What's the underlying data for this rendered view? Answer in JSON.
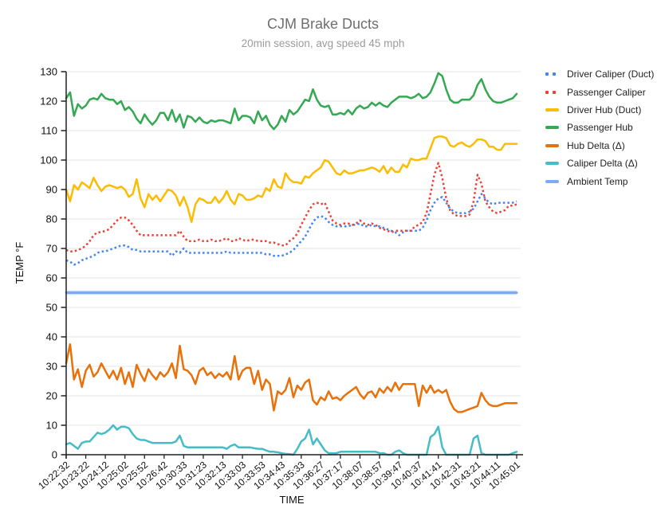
{
  "chart_data": {
    "type": "line",
    "title": "CJM Brake Ducts",
    "subtitle": "20min session, avg speed 45 mph",
    "xlabel": "TIME",
    "ylabel": "TEMP °F",
    "ylim": [
      0,
      130
    ],
    "y_tick_step": 10,
    "grid": true,
    "legend_position": "right",
    "n_points": 116,
    "points_per_tick": 5,
    "x_tick_labels": [
      "10:22:32",
      "10:23:22",
      "10:24:12",
      "10:25:02",
      "10:25:52",
      "10:26:42",
      "10:30:33",
      "10:31:23",
      "10:32:13",
      "10:33:03",
      "10:33:53",
      "10:34:43",
      "10:35:33",
      "10:36:27",
      "10:37:17",
      "10:38:07",
      "10:38:57",
      "10:39:47",
      "10:40:37",
      "10:41:41",
      "10:42:31",
      "10:43:21",
      "10:44:11",
      "10:45:01"
    ],
    "grid_color": "#e6e6e6",
    "axis_color": "#212121",
    "tick_label_color": "#111111",
    "series": [
      {
        "name": "Driver Caliper (Duct)",
        "color": "#4285f4",
        "style": "dotted",
        "values": [
          66,
          65.5,
          64.5,
          65,
          66,
          66.5,
          67,
          67.5,
          68.5,
          69,
          69,
          69.5,
          70,
          70.5,
          71,
          71,
          70.5,
          69.5,
          69.5,
          69,
          69,
          69,
          69,
          69,
          69,
          69,
          69,
          67.5,
          69,
          68.5,
          70,
          68.5,
          68.5,
          68.5,
          68.5,
          68.5,
          68.5,
          68.5,
          68.5,
          68.5,
          68.5,
          69,
          68.5,
          68.5,
          68.5,
          68.5,
          68.5,
          68.5,
          68.5,
          68.5,
          68.5,
          68,
          68,
          67.5,
          67.5,
          67.5,
          68,
          68.5,
          69.5,
          71,
          72.5,
          74,
          76.5,
          79,
          80.5,
          81,
          80.5,
          79,
          78,
          77.5,
          77.5,
          77.5,
          77.5,
          78,
          78,
          78.5,
          77.5,
          77.5,
          78,
          77.5,
          77.5,
          77,
          76.5,
          76,
          75.5,
          74.5,
          75.5,
          76,
          76,
          76,
          76,
          77,
          79.5,
          83,
          85.5,
          87,
          87.5,
          85.5,
          83.5,
          82.5,
          82,
          82,
          82,
          82.5,
          83.5,
          86,
          88.5,
          87,
          85.5,
          85,
          85.5,
          85.5,
          85.5,
          85.5,
          85.5,
          86
        ]
      },
      {
        "name": "Passenger Caliper",
        "color": "#ea4335",
        "style": "dotted",
        "values": [
          69.5,
          69,
          69,
          69.5,
          70,
          71,
          72.5,
          74.5,
          75.5,
          75.5,
          76,
          76.5,
          78,
          79.5,
          80.5,
          80.5,
          79.5,
          78,
          76,
          74.5,
          74.5,
          74.5,
          74.5,
          74.5,
          74.5,
          74.5,
          74.5,
          74.5,
          74.5,
          76,
          74,
          72.5,
          72.5,
          72.5,
          73,
          72.5,
          72.5,
          73,
          72.5,
          72.5,
          73,
          73.5,
          72.5,
          72.5,
          73.5,
          73,
          72.5,
          73,
          73,
          72.5,
          72.5,
          72.5,
          72,
          72,
          71.5,
          71,
          71,
          72.5,
          73.5,
          75,
          78,
          80.5,
          83,
          85,
          85.5,
          85,
          85.5,
          82.5,
          79.5,
          78.5,
          78,
          78.5,
          78.5,
          78,
          78.5,
          79.5,
          78.5,
          78,
          78.5,
          78,
          77,
          76.5,
          76,
          75.5,
          76,
          76,
          76,
          76,
          76,
          77.5,
          78,
          79,
          82,
          88.5,
          95,
          99,
          94,
          87,
          83,
          81.5,
          81,
          81,
          81,
          81.5,
          86,
          95,
          92,
          86,
          84,
          82.5,
          82,
          82.5,
          83,
          84.5,
          84.5,
          85
        ]
      },
      {
        "name": "Driver Hub (Duct)",
        "color": "#fbbc04",
        "style": "solid",
        "values": [
          90,
          86,
          91.5,
          90,
          92.5,
          91.5,
          90.5,
          94,
          91.5,
          89.5,
          91,
          91.5,
          91,
          90.5,
          91,
          90,
          87.5,
          88.5,
          93.5,
          87,
          84,
          88.5,
          86.5,
          88,
          86,
          88,
          90,
          89.5,
          88,
          84.5,
          87.5,
          84,
          79,
          85,
          87,
          86.5,
          85.5,
          85.5,
          87.5,
          85.5,
          87,
          89.5,
          86.5,
          85,
          88.5,
          88,
          86.5,
          86.5,
          87,
          88,
          87.5,
          90.5,
          89.5,
          93.5,
          91,
          90.5,
          95.5,
          93.5,
          92.5,
          92.5,
          92,
          94.5,
          94,
          95.5,
          96.5,
          97.5,
          100,
          99.5,
          97.5,
          95.5,
          95,
          96.5,
          95.5,
          95.5,
          96,
          96.5,
          96.5,
          97,
          97.5,
          97,
          96,
          98,
          95.5,
          97.5,
          96,
          96,
          98.5,
          97.5,
          100.5,
          100,
          100,
          100.5,
          100.5,
          104,
          107.5,
          108,
          108,
          107.5,
          105,
          104.5,
          105.5,
          106,
          105,
          104.5,
          105.5,
          107,
          107,
          106.5,
          104.5,
          104.5,
          103.5,
          103.5,
          105.5,
          105.5,
          105.5,
          105.5
        ]
      },
      {
        "name": "Passenger Hub",
        "color": "#34a853",
        "style": "solid",
        "values": [
          121,
          123,
          115,
          119,
          117.5,
          118.5,
          120.5,
          121,
          120.5,
          122.5,
          121,
          120.5,
          120.5,
          119,
          120,
          117,
          118,
          116.5,
          114,
          112.5,
          115.5,
          113.5,
          112,
          113.5,
          116,
          116,
          113.5,
          117,
          113,
          115.5,
          111,
          115,
          114.5,
          113,
          114.5,
          113,
          112.5,
          113.5,
          113,
          113.5,
          113.5,
          113,
          112.5,
          117.5,
          113.5,
          115,
          115,
          114.5,
          112.5,
          116.5,
          113.5,
          115,
          112,
          110.5,
          112,
          115,
          113,
          117,
          115.5,
          116.5,
          118.5,
          120.5,
          120,
          124,
          120.5,
          118.5,
          118,
          118.5,
          115.5,
          115.5,
          116,
          115.5,
          117,
          115.5,
          117.5,
          118.5,
          117.5,
          118,
          119.5,
          118.5,
          119.5,
          118.5,
          118,
          119.5,
          120.5,
          121.5,
          121.5,
          121.5,
          121,
          121.5,
          122.5,
          121,
          121.5,
          123,
          126,
          129.5,
          128.5,
          124,
          120.5,
          119.5,
          119.5,
          120.5,
          120.5,
          120.5,
          122,
          125.5,
          127.5,
          124,
          121.5,
          120,
          119.5,
          119.5,
          120,
          120.5,
          121,
          122.5
        ]
      },
      {
        "name": "Hub Delta (Δ)",
        "color": "#e8710a",
        "style": "solid",
        "values": [
          31,
          37.5,
          25.5,
          29,
          23,
          28.5,
          30.5,
          26.5,
          28,
          31,
          28.5,
          26,
          28.5,
          25.5,
          29.5,
          24,
          28,
          23,
          30.5,
          27.5,
          25,
          29,
          27,
          25.5,
          28,
          26.5,
          28,
          31,
          26,
          37,
          29,
          28.5,
          27,
          24,
          28.5,
          29.5,
          27,
          28,
          26,
          27.5,
          26.5,
          28,
          25.5,
          33.5,
          25.5,
          28.5,
          29.5,
          29.5,
          24,
          28.5,
          22,
          25.5,
          24,
          15,
          21.5,
          20.5,
          22,
          26,
          19.5,
          23.5,
          22,
          24.5,
          25.5,
          18.5,
          17,
          19.5,
          18.5,
          21.5,
          19,
          19.5,
          18.5,
          20,
          21,
          22,
          23,
          20.5,
          19,
          21,
          21.5,
          19.5,
          22.5,
          21,
          23,
          21.5,
          24.5,
          22,
          24,
          24,
          24,
          24,
          16.5,
          23.5,
          21,
          23.5,
          21,
          22,
          21,
          22,
          18,
          15.5,
          14.5,
          14.5,
          15,
          15.5,
          16,
          16.5,
          21,
          18.5,
          17,
          16.5,
          16.5,
          17,
          17.5,
          17.5,
          17.5,
          17.5
        ]
      },
      {
        "name": "Caliper Delta (Δ)",
        "color": "#46bdc6",
        "style": "solid",
        "values": [
          3.5,
          4,
          3,
          2,
          4,
          4.5,
          4.5,
          6,
          7.5,
          7,
          7.5,
          8.5,
          10,
          8.5,
          9.5,
          9.5,
          9,
          7,
          5.5,
          5,
          5,
          4.5,
          4,
          4,
          4,
          4,
          4,
          4,
          4.5,
          6.5,
          3,
          2.5,
          2.5,
          2.5,
          2.5,
          2.5,
          2.5,
          2.5,
          2.5,
          2.5,
          2.5,
          2,
          3,
          3.5,
          2.5,
          2.5,
          2.5,
          2.5,
          2.2,
          2,
          2,
          1.5,
          1,
          1,
          0.8,
          0.5,
          0.3,
          0.2,
          0,
          2,
          4.5,
          5.5,
          8.5,
          3.5,
          5.5,
          3.5,
          1.5,
          0.5,
          0.5,
          0.5,
          1,
          1,
          1,
          1,
          1,
          1,
          1,
          1,
          1,
          1,
          0.5,
          0.5,
          0,
          0,
          1,
          1.5,
          0.5,
          0,
          0,
          0,
          0,
          0,
          0,
          6,
          7,
          9.5,
          2.5,
          0,
          0,
          0,
          0,
          0,
          0,
          0,
          5.5,
          6.5,
          0.5,
          0,
          0,
          0,
          0,
          0,
          0,
          0,
          0.5,
          1
        ]
      },
      {
        "name": "Ambient Temp",
        "color": "#7baaf7",
        "halo": "#cddffb",
        "style": "thick",
        "constant": 55
      }
    ]
  }
}
